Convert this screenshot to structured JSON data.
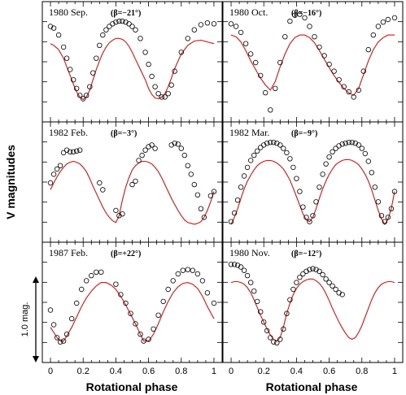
{
  "figure": {
    "xlabel": "Rotational phase",
    "ylabel": "V magnitudes",
    "scale_bar_label": "1.0 mag.",
    "scale_bar_mag": 1.0,
    "x_ticks": [
      "0",
      "0.2",
      "0.4",
      "0.6",
      "0.8",
      "1"
    ],
    "colors": {
      "observed": "#000000",
      "model": "#e01010",
      "frame": "#000000"
    }
  },
  "chart_data": [
    {
      "type": "scatter",
      "title": "1980 Sep.",
      "beta_label": "(β=−21°)",
      "xlim": [
        -0.05,
        1.05
      ],
      "x": [
        0.0,
        0.02,
        0.05,
        0.08,
        0.1,
        0.12,
        0.14,
        0.16,
        0.18,
        0.2,
        0.22,
        0.24,
        0.26,
        0.28,
        0.3,
        0.32,
        0.34,
        0.36,
        0.38,
        0.4,
        0.42,
        0.44,
        0.46,
        0.48,
        0.5,
        0.52,
        0.55,
        0.58,
        0.6,
        0.62,
        0.64,
        0.66,
        0.68,
        0.7,
        0.72,
        0.74,
        0.76,
        0.8,
        0.84,
        0.88,
        0.92,
        0.96,
        1.0
      ],
      "series": [
        {
          "name": "",
          "values": [
            0.92,
            0.9,
            0.82,
            0.68,
            0.55,
            0.42,
            0.3,
            0.2,
            0.12,
            0.08,
            0.12,
            0.22,
            0.38,
            0.55,
            0.7,
            0.82,
            0.88,
            0.92,
            0.95,
            0.97,
            0.98,
            0.98,
            0.97,
            0.95,
            0.92,
            0.88,
            0.78,
            0.62,
            0.48,
            0.34,
            0.22,
            0.14,
            0.1,
            0.1,
            0.14,
            0.24,
            0.4,
            0.62,
            0.78,
            0.88,
            0.94,
            0.96,
            0.95
          ]
        },
        {
          "name": "",
          "values": [
            0.72,
            0.7,
            0.65,
            0.55,
            0.45,
            0.35,
            0.25,
            0.16,
            0.1,
            0.07,
            0.1,
            0.18,
            0.3,
            0.42,
            0.52,
            0.61,
            0.68,
            0.73,
            0.76,
            0.78,
            0.78,
            0.77,
            0.74,
            0.69,
            0.62,
            0.54,
            0.42,
            0.3,
            0.2,
            0.13,
            0.09,
            0.08,
            0.1,
            0.14,
            0.22,
            0.32,
            0.43,
            0.6,
            0.7,
            0.75,
            0.76,
            0.74,
            0.72
          ]
        }
      ]
    },
    {
      "type": "scatter",
      "title": "1980 Oct.",
      "beta_label": "(β=−16°)",
      "xlim": [
        -0.05,
        1.05
      ],
      "x": [
        0.0,
        0.03,
        0.06,
        0.09,
        0.12,
        0.15,
        0.18,
        0.21,
        0.24,
        0.27,
        0.3,
        0.33,
        0.36,
        0.39,
        0.42,
        0.45,
        0.48,
        0.51,
        0.54,
        0.57,
        0.6,
        0.63,
        0.66,
        0.69,
        0.72,
        0.75,
        0.78,
        0.81,
        0.84,
        0.87,
        0.9,
        0.93,
        0.96,
        1.0
      ],
      "series": [
        {
          "name": "",
          "values": [
            0.95,
            0.92,
            0.85,
            0.72,
            0.6,
            0.5,
            0.35,
            0.15,
            -0.05,
            0.2,
            0.5,
            0.8,
            0.98,
            1.05,
            1.06,
            1.02,
            0.92,
            0.8,
            0.68,
            0.58,
            0.48,
            0.4,
            0.3,
            0.22,
            0.16,
            0.1,
            0.18,
            0.4,
            0.65,
            0.82,
            0.92,
            0.97,
            1.0,
            1.02
          ]
        },
        {
          "name": "",
          "values": [
            0.82,
            0.8,
            0.74,
            0.64,
            0.52,
            0.42,
            0.32,
            0.24,
            0.18,
            0.28,
            0.45,
            0.6,
            0.72,
            0.79,
            0.82,
            0.82,
            0.79,
            0.73,
            0.64,
            0.54,
            0.44,
            0.35,
            0.27,
            0.2,
            0.15,
            0.12,
            0.2,
            0.36,
            0.52,
            0.65,
            0.74,
            0.79,
            0.82,
            0.82
          ]
        }
      ]
    },
    {
      "type": "scatter",
      "title": "1982 Feb.",
      "beta_label": "(β=−3°)",
      "xlim": [
        -0.05,
        1.05
      ],
      "x": [
        0.0,
        0.02,
        0.04,
        0.06,
        0.08,
        0.1,
        0.12,
        0.14,
        0.16,
        0.18,
        0.2,
        0.22,
        0.24,
        0.26,
        0.28,
        0.3,
        0.32,
        0.34,
        0.36,
        0.38,
        0.4,
        0.42,
        0.44,
        0.46,
        0.48,
        0.5,
        0.52,
        0.54,
        0.56,
        0.58,
        0.6,
        0.62,
        0.64,
        0.66,
        0.68,
        0.7,
        0.72,
        0.74,
        0.76,
        0.78,
        0.8,
        0.82,
        0.84,
        0.86,
        0.88,
        0.9,
        0.92,
        0.94,
        0.96,
        0.98,
        1.0
      ],
      "series": [
        {
          "name": "",
          "values": [
            0.5,
            0.6,
            0.66,
            0.7,
            0.85,
            0.88,
            0.86,
            0.86,
            0.87,
            0.88,
            null,
            null,
            null,
            null,
            null,
            0.5,
            0.42,
            null,
            null,
            null,
            0.18,
            0.12,
            0.14,
            null,
            null,
            0.48,
            0.52,
            0.76,
            0.82,
            0.88,
            0.92,
            0.94,
            0.9,
            null,
            null,
            null,
            null,
            0.94,
            0.96,
            0.95,
            0.9,
            0.82,
            0.7,
            0.6,
            0.48,
            0.36,
            0.2,
            0.1,
            null,
            0.35,
            0.4
          ]
        },
        {
          "name": "",
          "values": [
            0.42,
            0.5,
            0.57,
            0.63,
            0.68,
            0.72,
            0.74,
            0.75,
            0.74,
            0.72,
            0.68,
            0.63,
            0.55,
            0.46,
            0.38,
            0.3,
            0.22,
            0.15,
            0.1,
            0.06,
            0.04,
            0.12,
            0.3,
            0.45,
            0.56,
            0.65,
            0.7,
            0.73,
            0.75,
            0.75,
            0.74,
            0.72,
            0.68,
            0.63,
            0.56,
            0.48,
            0.4,
            0.32,
            0.25,
            0.18,
            0.12,
            0.07,
            0.04,
            0.03,
            0.02,
            0.03,
            0.05,
            0.1,
            0.18,
            0.28,
            0.4
          ]
        }
      ]
    },
    {
      "type": "scatter",
      "title": "1982 Mar.",
      "beta_label": "(β=−9°)",
      "xlim": [
        -0.05,
        1.05
      ],
      "x": [
        0.0,
        0.02,
        0.04,
        0.06,
        0.08,
        0.1,
        0.12,
        0.14,
        0.16,
        0.18,
        0.2,
        0.22,
        0.24,
        0.26,
        0.28,
        0.3,
        0.32,
        0.34,
        0.36,
        0.38,
        0.4,
        0.42,
        0.44,
        0.46,
        0.48,
        0.5,
        0.52,
        0.54,
        0.56,
        0.58,
        0.6,
        0.62,
        0.64,
        0.66,
        0.68,
        0.7,
        0.72,
        0.74,
        0.76,
        0.78,
        0.8,
        0.82,
        0.84,
        0.86,
        0.88,
        0.9,
        0.92,
        0.94,
        0.96,
        0.98,
        1.0
      ],
      "series": [
        {
          "name": "",
          "values": [
            0.05,
            0.15,
            0.3,
            0.45,
            0.58,
            0.68,
            0.76,
            0.82,
            0.87,
            0.91,
            0.94,
            0.96,
            0.97,
            0.97,
            0.96,
            0.94,
            0.9,
            0.85,
            0.78,
            0.68,
            0.55,
            0.4,
            0.22,
            0.1,
            0.05,
            0.12,
            0.28,
            0.45,
            0.6,
            0.72,
            0.8,
            0.86,
            0.9,
            0.93,
            0.95,
            0.96,
            0.97,
            0.97,
            0.96,
            0.94,
            0.9,
            0.84,
            0.75,
            0.62,
            0.45,
            0.28,
            0.12,
            0.05,
            0.1,
            0.2,
            0.4
          ]
        },
        {
          "name": "",
          "values": [
            0.02,
            0.1,
            0.2,
            0.32,
            0.43,
            0.52,
            0.59,
            0.65,
            0.7,
            0.73,
            0.75,
            0.76,
            0.76,
            0.75,
            0.73,
            0.7,
            0.66,
            0.6,
            0.53,
            0.44,
            0.34,
            0.24,
            0.14,
            0.07,
            0.05,
            0.1,
            0.2,
            0.32,
            0.43,
            0.52,
            0.6,
            0.66,
            0.71,
            0.74,
            0.76,
            0.77,
            0.77,
            0.76,
            0.74,
            0.71,
            0.66,
            0.6,
            0.52,
            0.42,
            0.3,
            0.18,
            0.08,
            0.02,
            0.08,
            0.2,
            0.4
          ]
        }
      ]
    },
    {
      "type": "scatter",
      "title": "1987 Feb.",
      "beta_label": "(β=+22°)",
      "xlim": [
        -0.05,
        1.05
      ],
      "x": [
        0.0,
        0.02,
        0.04,
        0.06,
        0.08,
        0.1,
        0.13,
        0.16,
        0.19,
        0.22,
        0.25,
        0.28,
        0.31,
        0.34,
        0.37,
        0.4,
        0.43,
        0.46,
        0.49,
        0.52,
        0.55,
        0.57,
        0.6,
        0.63,
        0.66,
        0.69,
        0.72,
        0.75,
        0.78,
        0.81,
        0.84,
        0.87,
        0.9,
        0.93,
        0.96,
        1.0
      ],
      "series": [
        {
          "name": "",
          "values": [
            0.42,
            0.25,
            0.1,
            0.05,
            0.06,
            0.14,
            0.32,
            0.5,
            0.66,
            0.76,
            0.82,
            0.86,
            0.86,
            null,
            null,
            0.72,
            0.6,
            0.5,
            0.38,
            0.26,
            0.14,
            0.06,
            0.08,
            0.2,
            0.36,
            0.52,
            0.66,
            0.76,
            0.84,
            0.88,
            0.89,
            0.88,
            0.84,
            0.76,
            0.62,
            0.5
          ]
        },
        {
          "name": "",
          "values": [
            0.22,
            0.16,
            0.1,
            0.06,
            0.06,
            0.12,
            0.22,
            0.34,
            0.46,
            0.56,
            0.64,
            0.7,
            0.74,
            0.74,
            0.71,
            0.66,
            0.58,
            0.48,
            0.37,
            0.26,
            0.14,
            0.06,
            0.06,
            0.14,
            0.26,
            0.4,
            0.52,
            0.62,
            0.69,
            0.73,
            0.74,
            0.72,
            0.67,
            0.58,
            0.46,
            0.32
          ]
        }
      ]
    },
    {
      "type": "scatter",
      "title": "1980 Nov.",
      "beta_label": "(β=−12°)",
      "xlim": [
        -0.05,
        1.05
      ],
      "x": [
        0.0,
        0.02,
        0.04,
        0.06,
        0.08,
        0.1,
        0.12,
        0.14,
        0.16,
        0.18,
        0.2,
        0.22,
        0.24,
        0.26,
        0.28,
        0.3,
        0.32,
        0.34,
        0.36,
        0.38,
        0.4,
        0.42,
        0.44,
        0.46,
        0.48,
        0.5,
        0.52,
        0.54,
        0.56,
        0.58,
        0.6,
        0.62,
        0.64,
        0.66,
        0.68,
        0.7,
        0.72,
        0.74,
        0.76,
        0.78,
        0.8,
        0.82,
        0.84,
        0.86,
        0.88,
        0.9,
        0.92,
        0.94,
        0.96,
        0.98,
        1.0
      ],
      "series": [
        {
          "name": "",
          "values": [
            0.95,
            0.95,
            0.94,
            0.92,
            0.88,
            0.82,
            0.74,
            0.64,
            0.52,
            0.4,
            0.28,
            0.18,
            0.1,
            0.05,
            0.04,
            0.08,
            0.2,
            0.38,
            0.54,
            0.66,
            0.74,
            0.8,
            0.84,
            0.87,
            0.89,
            0.9,
            0.89,
            0.87,
            0.83,
            0.78,
            0.74,
            0.7,
            0.66,
            0.62,
            0.6,
            null,
            null,
            null,
            null,
            null,
            null,
            null,
            null,
            null,
            null,
            null,
            null,
            null,
            null,
            null,
            null
          ]
        },
        {
          "name": "",
          "values": [
            0.74,
            0.75,
            0.75,
            0.74,
            0.72,
            0.68,
            0.62,
            0.54,
            0.45,
            0.36,
            0.28,
            0.2,
            0.13,
            0.08,
            0.06,
            0.1,
            0.22,
            0.38,
            0.5,
            0.6,
            0.67,
            0.72,
            0.75,
            0.77,
            0.78,
            0.78,
            0.76,
            0.73,
            0.68,
            0.61,
            0.53,
            0.44,
            0.36,
            0.28,
            0.21,
            0.15,
            0.1,
            0.08,
            0.1,
            0.16,
            0.24,
            0.34,
            0.44,
            0.54,
            0.62,
            0.68,
            0.72,
            0.74,
            0.75,
            0.75,
            0.74
          ]
        }
      ]
    }
  ]
}
